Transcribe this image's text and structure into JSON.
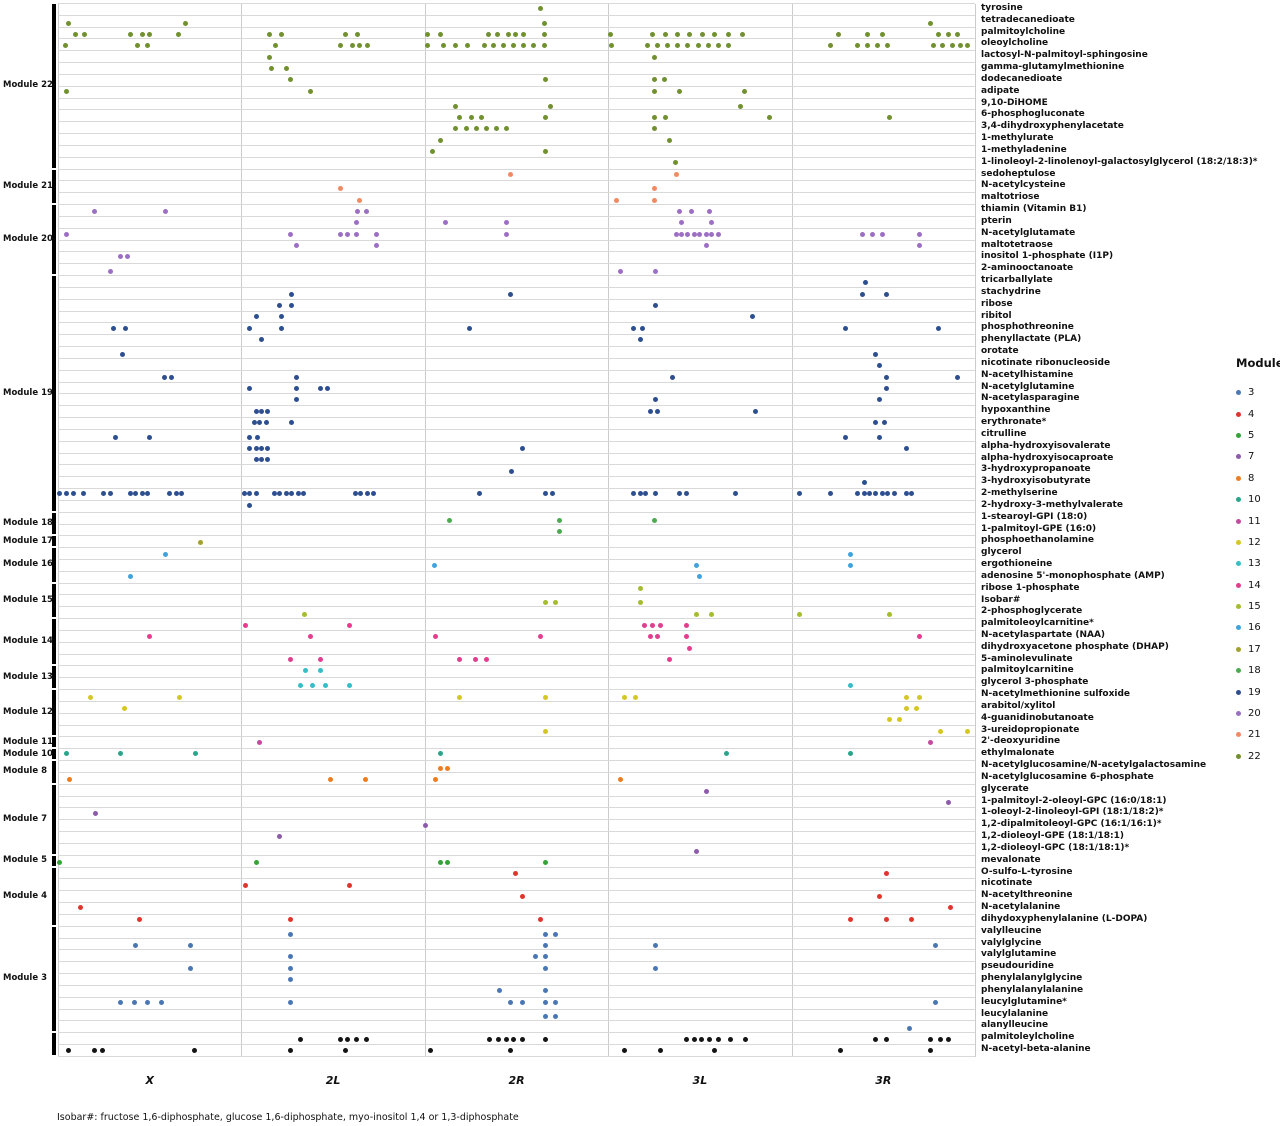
{
  "chart_data": {
    "type": "scatter",
    "title": "",
    "xlabel": "",
    "ylabel": "",
    "x_axis": {
      "chromosomes": [
        "X",
        "2L",
        "2R",
        "3L",
        "3R"
      ]
    },
    "legend": {
      "title": "Module",
      "position": "right",
      "entries": [
        "3",
        "4",
        "5",
        "7",
        "8",
        "10",
        "11",
        "12",
        "13",
        "14",
        "15",
        "16",
        "17",
        "18",
        "19",
        "20",
        "21",
        "22"
      ]
    },
    "footnote": "Isobar#: fructose 1,6-diphosphate, glucose 1,6-diphosphate, myo-inositol 1,4 or 1,3-diphosphate",
    "module_colors": {
      "3": "#4a77b4",
      "4": "#e0352c",
      "5": "#35a438",
      "7": "#8d5bab",
      "8": "#ee7d20",
      "10": "#2aa58c",
      "11": "#c44a9f",
      "12": "#d4c723",
      "13": "#35bec6",
      "14": "#e23d8e",
      "15": "#a6bb2d",
      "16": "#41a3dc",
      "17": "#a2a22b",
      "18": "#4cab50",
      "19": "#2d4e8f",
      "20": "#9c6fc4",
      "21": "#f18a60",
      "22": "#71902f",
      "black": "#141414"
    },
    "modules": [
      {
        "id": "22",
        "label": "Module 22",
        "start": 0,
        "end": 13
      },
      {
        "id": "21",
        "label": "Module 21",
        "start": 14,
        "end": 16
      },
      {
        "id": "20",
        "label": "Module 20",
        "start": 17,
        "end": 22
      },
      {
        "id": "19",
        "label": "Module 19",
        "start": 23,
        "end": 42
      },
      {
        "id": "18",
        "label": "Module 18",
        "start": 43,
        "end": 44
      },
      {
        "id": "17",
        "label": "Module 17",
        "start": 45,
        "end": 45
      },
      {
        "id": "16",
        "label": "Module 16",
        "start": 46,
        "end": 48
      },
      {
        "id": "15",
        "label": "Module 15",
        "start": 49,
        "end": 51
      },
      {
        "id": "14",
        "label": "Module 14",
        "start": 52,
        "end": 55
      },
      {
        "id": "13",
        "label": "Module 13",
        "start": 56,
        "end": 57
      },
      {
        "id": "12",
        "label": "Module 12",
        "start": 58,
        "end": 61
      },
      {
        "id": "11",
        "label": "Module 11",
        "start": 62,
        "end": 62
      },
      {
        "id": "10",
        "label": "Module 10",
        "start": 63,
        "end": 63
      },
      {
        "id": "8",
        "label": "Module 8",
        "start": 64,
        "end": 65
      },
      {
        "id": "7",
        "label": "Module 7",
        "start": 66,
        "end": 71
      },
      {
        "id": "5",
        "label": "Module 5",
        "start": 72,
        "end": 72
      },
      {
        "id": "4",
        "label": "Module 4",
        "start": 73,
        "end": 77
      },
      {
        "id": "3",
        "label": "Module 3",
        "start": 78,
        "end": 86
      },
      {
        "id": "black",
        "label": "",
        "start": 87,
        "end": 88
      }
    ],
    "rows": [
      {
        "name": "tyrosine",
        "module": "22",
        "x": [
          0.526
        ]
      },
      {
        "name": "tetradecanedioate",
        "module": "22",
        "x": [
          0.011,
          0.139,
          0.531,
          0.951
        ]
      },
      {
        "name": "palmitoylcholine",
        "module": "22",
        "x": [
          0.019,
          0.029,
          0.079,
          0.092,
          0.1,
          0.131,
          0.231,
          0.244,
          0.313,
          0.327,
          0.403,
          0.417,
          0.469,
          0.479,
          0.491,
          0.499,
          0.508,
          0.531,
          0.602,
          0.648,
          0.662,
          0.676,
          0.689,
          0.703,
          0.716,
          0.731,
          0.746,
          0.851,
          0.883,
          0.899,
          0.96,
          0.971,
          0.981
        ]
      },
      {
        "name": "oleoylcholine",
        "module": "22",
        "x": [
          0.008,
          0.087,
          0.098,
          0.237,
          0.308,
          0.321,
          0.329,
          0.338,
          0.403,
          0.42,
          0.433,
          0.447,
          0.465,
          0.475,
          0.486,
          0.497,
          0.508,
          0.519,
          0.531,
          0.604,
          0.643,
          0.654,
          0.665,
          0.676,
          0.687,
          0.698,
          0.709,
          0.72,
          0.731,
          0.842,
          0.872,
          0.883,
          0.894,
          0.905,
          0.955,
          0.965,
          0.975,
          0.984,
          0.992
        ]
      },
      {
        "name": "lactosyl-N-palmitoyl-sphingosine",
        "module": "22",
        "x": [
          0.231,
          0.651
        ]
      },
      {
        "name": "gamma-glutamylmethionine",
        "module": "22",
        "x": [
          0.233,
          0.249
        ]
      },
      {
        "name": "dodecanedioate",
        "module": "22",
        "x": [
          0.253,
          0.532,
          0.65,
          0.661
        ]
      },
      {
        "name": "adipate",
        "module": "22",
        "x": [
          0.009,
          0.275,
          0.651,
          0.678,
          0.749
        ]
      },
      {
        "name": "9,10-DiHOME",
        "module": "22",
        "x": [
          0.433,
          0.537,
          0.744
        ]
      },
      {
        "name": "6-phosphogluconate",
        "module": "22",
        "x": [
          0.438,
          0.451,
          0.462,
          0.532,
          0.651,
          0.663,
          0.776,
          0.907
        ]
      },
      {
        "name": "3,4-dihydroxyphenylacetate",
        "module": "22",
        "x": [
          0.434,
          0.445,
          0.456,
          0.467,
          0.478,
          0.489,
          0.651
        ]
      },
      {
        "name": "1-methylurate",
        "module": "22",
        "x": [
          0.417,
          0.667
        ]
      },
      {
        "name": "1-methyladenine",
        "module": "22",
        "x": [
          0.408,
          0.532
        ]
      },
      {
        "name": "1-linoleoyl-2-linolenoyl-galactosylglycerol (18:2/18:3)*",
        "module": "22",
        "x": [
          0.673
        ]
      },
      {
        "name": "sedoheptulose",
        "module": "21",
        "x": [
          0.493,
          0.674
        ]
      },
      {
        "name": "N-acetylcysteine",
        "module": "21",
        "x": [
          0.308,
          0.651
        ]
      },
      {
        "name": "maltotriose",
        "module": "21",
        "x": [
          0.329,
          0.609,
          0.651
        ]
      },
      {
        "name": "thiamin (Vitamin B1)",
        "module": "20",
        "x": [
          0.04,
          0.117,
          0.327,
          0.336,
          0.678,
          0.691,
          0.711
        ]
      },
      {
        "name": "pterin",
        "module": "20",
        "x": [
          0.325,
          0.423,
          0.489,
          0.68,
          0.713
        ]
      },
      {
        "name": "N-acetylglutamate",
        "module": "20",
        "x": [
          0.009,
          0.253,
          0.308,
          0.316,
          0.325,
          0.347,
          0.489,
          0.674,
          0.68,
          0.687,
          0.694,
          0.7,
          0.707,
          0.713,
          0.72,
          0.877,
          0.888,
          0.899,
          0.94
        ]
      },
      {
        "name": "maltotetraose",
        "module": "20",
        "x": [
          0.26,
          0.347,
          0.707,
          0.94
        ]
      },
      {
        "name": "inositol 1-phosphate (I1P)",
        "module": "20",
        "x": [
          0.068,
          0.076
        ]
      },
      {
        "name": "2-aminooctanoate",
        "module": "20",
        "x": [
          0.057,
          0.613,
          0.652
        ]
      },
      {
        "name": "tricarballylate",
        "module": "19",
        "x": [
          0.881
        ]
      },
      {
        "name": "stachydrine",
        "module": "19",
        "x": [
          0.255,
          0.493,
          0.877,
          0.903
        ]
      },
      {
        "name": "ribose",
        "module": "19",
        "x": [
          0.242,
          0.255,
          0.652
        ]
      },
      {
        "name": "ribitol",
        "module": "19",
        "x": [
          0.216,
          0.244,
          0.757
        ]
      },
      {
        "name": "phosphothreonine",
        "module": "19",
        "x": [
          0.061,
          0.074,
          0.209,
          0.244,
          0.449,
          0.628,
          0.637,
          0.859,
          0.96
        ]
      },
      {
        "name": "phenyllactate (PLA)",
        "module": "19",
        "x": [
          0.222,
          0.635
        ]
      },
      {
        "name": "orotate",
        "module": "19",
        "x": [
          0.07,
          0.892
        ]
      },
      {
        "name": "nicotinate ribonucleoside",
        "module": "19",
        "x": [
          0.896
        ]
      },
      {
        "name": "N-acetylhistamine",
        "module": "19",
        "x": [
          0.116,
          0.124,
          0.26,
          0.67,
          0.903,
          0.981
        ]
      },
      {
        "name": "N-acetylglutamine",
        "module": "19",
        "x": [
          0.209,
          0.26,
          0.286,
          0.294,
          0.903
        ]
      },
      {
        "name": "N-acetylasparagine",
        "module": "19",
        "x": [
          0.26,
          0.652,
          0.896
        ]
      },
      {
        "name": "hypoxanthine",
        "module": "19",
        "x": [
          0.216,
          0.222,
          0.229,
          0.646,
          0.654,
          0.761
        ]
      },
      {
        "name": "erythronate*",
        "module": "19",
        "x": [
          0.214,
          0.22,
          0.227,
          0.255,
          0.892,
          0.901
        ]
      },
      {
        "name": "citrulline",
        "module": "19",
        "x": [
          0.063,
          0.1,
          0.209,
          0.218,
          0.859,
          0.896
        ]
      },
      {
        "name": "alpha-hydroxyisovalerate",
        "module": "19",
        "x": [
          0.209,
          0.216,
          0.222,
          0.229,
          0.506,
          0.925
        ]
      },
      {
        "name": "alpha-hydroxyisocaproate",
        "module": "19",
        "x": [
          0.216,
          0.222,
          0.229
        ]
      },
      {
        "name": "3-hydroxypropanoate",
        "module": "19",
        "x": [
          0.495
        ]
      },
      {
        "name": "3-hydroxyisobutyrate",
        "module": "19",
        "x": [
          0.88
        ]
      },
      {
        "name": "2-methylserine",
        "module": "19",
        "x": [
          0.002,
          0.009,
          0.017,
          0.028,
          0.05,
          0.057,
          0.079,
          0.085,
          0.092,
          0.098,
          0.122,
          0.129,
          0.135,
          0.203,
          0.209,
          0.216,
          0.236,
          0.242,
          0.249,
          0.255,
          0.262,
          0.268,
          0.324,
          0.33,
          0.337,
          0.344,
          0.46,
          0.532,
          0.539,
          0.628,
          0.635,
          0.641,
          0.652,
          0.678,
          0.685,
          0.739,
          0.809,
          0.842,
          0.872,
          0.879,
          0.885,
          0.892,
          0.899,
          0.905,
          0.912,
          0.925,
          0.931
        ]
      },
      {
        "name": "2-hydroxy-3-methylvalerate",
        "module": "19",
        "x": [
          0.209
        ]
      },
      {
        "name": "1-stearoyl-GPI (18:0)",
        "module": "18",
        "x": [
          0.427,
          0.547,
          0.651
        ]
      },
      {
        "name": "1-palmitoyl-GPE (16:0)",
        "module": "18",
        "x": [
          0.547
        ]
      },
      {
        "name": "phosphoethanolamine",
        "module": "17",
        "x": [
          0.155
        ]
      },
      {
        "name": "glycerol",
        "module": "16",
        "x": [
          0.117,
          0.864
        ]
      },
      {
        "name": "ergothioneine",
        "module": "16",
        "x": [
          0.411,
          0.696,
          0.864
        ]
      },
      {
        "name": "adenosine 5'-monophosphate (AMP)",
        "module": "16",
        "x": [
          0.079,
          0.7
        ]
      },
      {
        "name": "ribose 1-phosphate",
        "module": "15",
        "x": [
          0.635
        ]
      },
      {
        "name": "Isobar#",
        "module": "15",
        "x": [
          0.532,
          0.543,
          0.635
        ]
      },
      {
        "name": "2-phosphoglycerate",
        "module": "15",
        "x": [
          0.269,
          0.696,
          0.713,
          0.809,
          0.907
        ]
      },
      {
        "name": "palmitoleoylcarnitine*",
        "module": "14",
        "x": [
          0.204,
          0.318,
          0.64,
          0.648,
          0.657,
          0.685
        ]
      },
      {
        "name": "N-acetylaspartate (NAA)",
        "module": "14",
        "x": [
          0.1,
          0.275,
          0.412,
          0.526,
          0.646,
          0.654,
          0.685,
          0.94
        ]
      },
      {
        "name": "dihydroxyacetone phosphate (DHAP)",
        "module": "14",
        "x": [
          0.689
        ]
      },
      {
        "name": "5-aminolevulinate",
        "module": "14",
        "x": [
          0.253,
          0.286,
          0.438,
          0.455,
          0.467,
          0.667
        ]
      },
      {
        "name": "palmitoylcarnitine",
        "module": "13",
        "x": [
          0.27,
          0.286
        ]
      },
      {
        "name": "glycerol 3-phosphate",
        "module": "13",
        "x": [
          0.264,
          0.277,
          0.292,
          0.318,
          0.864
        ]
      },
      {
        "name": "N-acetylmethionine sulfoxide",
        "module": "12",
        "x": [
          0.035,
          0.133,
          0.438,
          0.532,
          0.618,
          0.63,
          0.925,
          0.94
        ]
      },
      {
        "name": "arabitol/xylitol",
        "module": "12",
        "x": [
          0.073,
          0.925,
          0.936
        ]
      },
      {
        "name": "4-guanidinobutanoate",
        "module": "12",
        "x": [
          0.907,
          0.918
        ]
      },
      {
        "name": "3-ureidopropionate",
        "module": "12",
        "x": [
          0.532,
          0.962,
          0.992
        ]
      },
      {
        "name": "2'-deoxyuridine",
        "module": "11",
        "x": [
          0.22,
          0.951
        ]
      },
      {
        "name": "ethylmalonate",
        "module": "10",
        "x": [
          0.009,
          0.068,
          0.15,
          0.417,
          0.729,
          0.864
        ]
      },
      {
        "name": "N-acetylglucosamine/N-acetylgalactosamine",
        "module": "8",
        "x": [
          0.417,
          0.425
        ]
      },
      {
        "name": "N-acetylglucosamine 6-phosphate",
        "module": "8",
        "x": [
          0.013,
          0.297,
          0.335,
          0.412,
          0.613
        ]
      },
      {
        "name": "glycerate",
        "module": "7",
        "x": [
          0.707
        ]
      },
      {
        "name": "1-palmitoyl-2-oleoyl-GPC (16:0/18:1)",
        "module": "7",
        "x": [
          0.971
        ]
      },
      {
        "name": "1-oleoyl-2-linoleoyl-GPI (18:1/18:2)*",
        "module": "7",
        "x": [
          0.041
        ]
      },
      {
        "name": "1,2-dipalmitoleoyl-GPC (16:1/16:1)*",
        "module": "7",
        "x": [
          0.401
        ]
      },
      {
        "name": "1,2-dioleoyl-GPE (18:1/18:1)",
        "module": "7",
        "x": [
          0.242
        ]
      },
      {
        "name": "1,2-dioleoyl-GPC (18:1/18:1)*",
        "module": "7",
        "x": [
          0.696
        ]
      },
      {
        "name": "mevalonate",
        "module": "5",
        "x": [
          0.002,
          0.216,
          0.417,
          0.425,
          0.532
        ]
      },
      {
        "name": "O-sulfo-L-tyrosine",
        "module": "4",
        "x": [
          0.499,
          0.903
        ]
      },
      {
        "name": "nicotinate",
        "module": "4",
        "x": [
          0.205,
          0.318
        ]
      },
      {
        "name": "N-acetylthreonine",
        "module": "4",
        "x": [
          0.506,
          0.896
        ]
      },
      {
        "name": "N-acetylalanine",
        "module": "4",
        "x": [
          0.024,
          0.973
        ]
      },
      {
        "name": "dihydoxyphenylalanine (L-DOPA)",
        "module": "4",
        "x": [
          0.089,
          0.253,
          0.526,
          0.864,
          0.903,
          0.931
        ]
      },
      {
        "name": "valylleucine",
        "module": "3",
        "x": [
          0.253,
          0.532,
          0.543
        ]
      },
      {
        "name": "valylglycine",
        "module": "3",
        "x": [
          0.085,
          0.144,
          0.532,
          0.652,
          0.957
        ]
      },
      {
        "name": "valylglutamine",
        "module": "3",
        "x": [
          0.253,
          0.521,
          0.532
        ]
      },
      {
        "name": "pseudouridine",
        "module": "3",
        "x": [
          0.144,
          0.253,
          0.532,
          0.652
        ]
      },
      {
        "name": "phenylalanylglycine",
        "module": "3",
        "x": [
          0.253
        ]
      },
      {
        "name": "phenylalanylalanine",
        "module": "3",
        "x": [
          0.482,
          0.532
        ]
      },
      {
        "name": "leucylglutamine*",
        "module": "3",
        "x": [
          0.068,
          0.083,
          0.098,
          0.113,
          0.253,
          0.493,
          0.506,
          0.532,
          0.543,
          0.957
        ]
      },
      {
        "name": "leucylalanine",
        "module": "3",
        "x": [
          0.532,
          0.543
        ]
      },
      {
        "name": "alanylleucine",
        "module": "3",
        "x": [
          0.929
        ]
      },
      {
        "name": "palmitoleylcholine",
        "module": "black",
        "x": [
          0.264,
          0.308,
          0.316,
          0.325,
          0.336,
          0.471,
          0.48,
          0.489,
          0.497,
          0.506,
          0.532,
          0.685,
          0.694,
          0.702,
          0.711,
          0.72,
          0.733,
          0.75,
          0.892,
          0.903,
          0.951,
          0.962,
          0.971
        ]
      },
      {
        "name": "N-acetyl-beta-alanine",
        "module": "black",
        "x": [
          0.011,
          0.04,
          0.048,
          0.149,
          0.253,
          0.313,
          0.406,
          0.493,
          0.618,
          0.657,
          0.716,
          0.853,
          0.951
        ]
      }
    ]
  }
}
